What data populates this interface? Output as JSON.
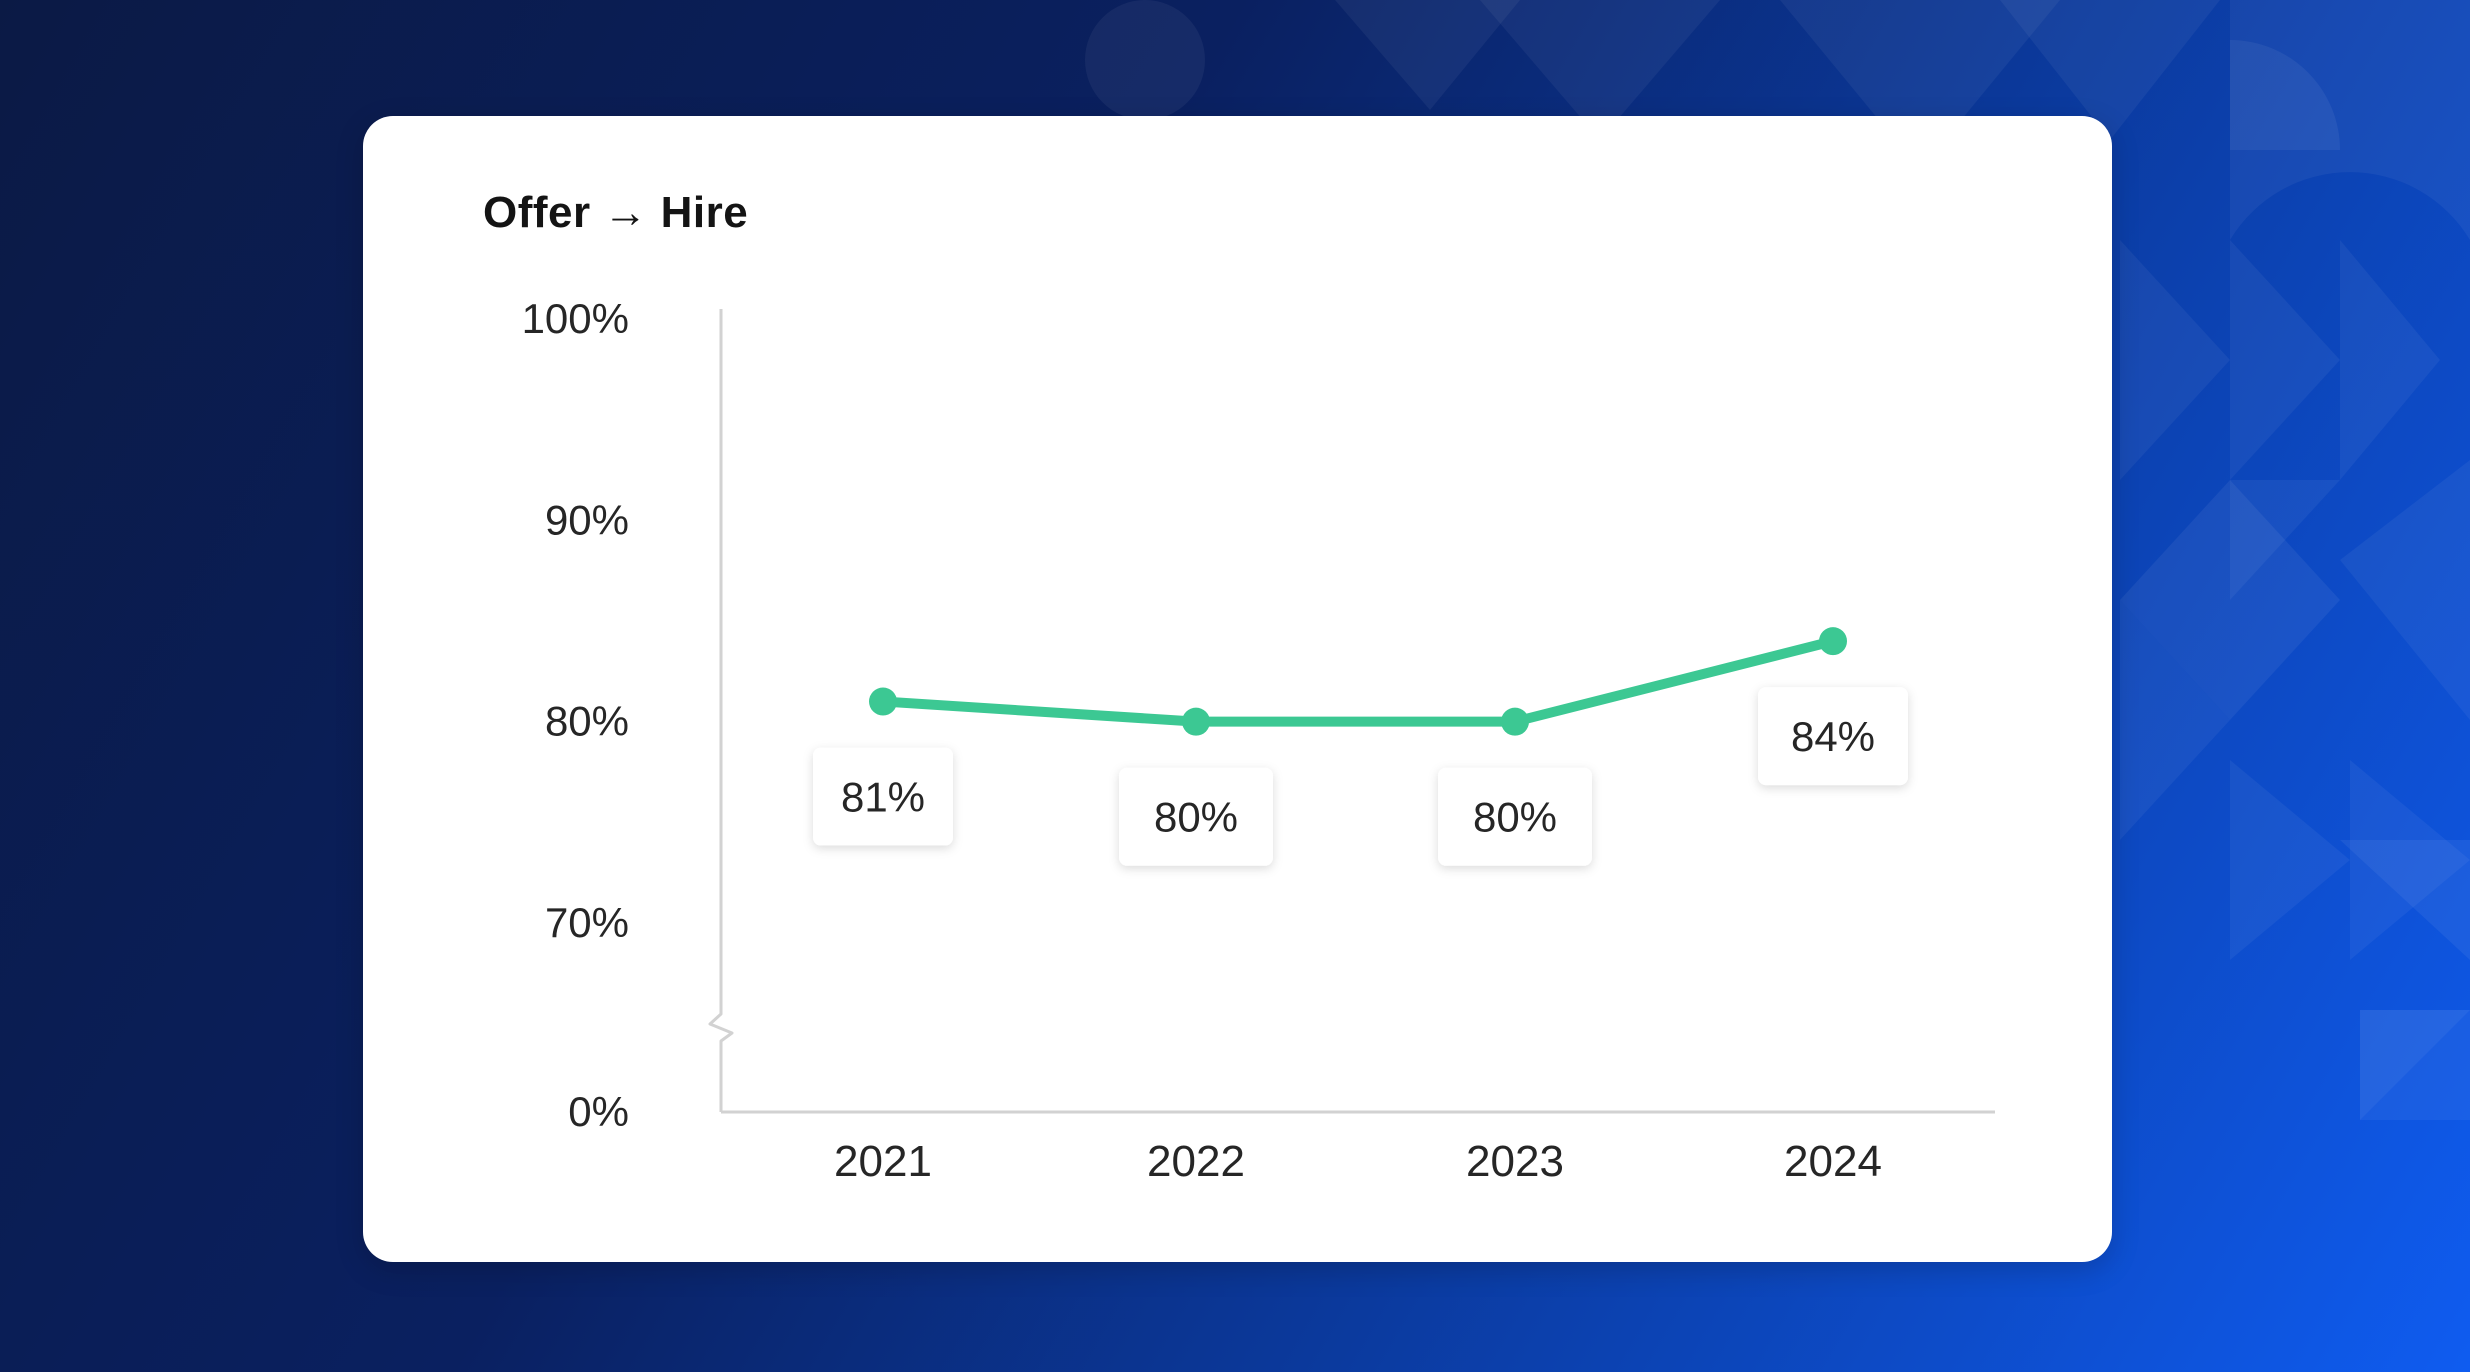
{
  "colors": {
    "line": "#3cc893",
    "axis": "#d2d2d2",
    "text": "#262626",
    "card": "#ffffff"
  },
  "chart_data": {
    "type": "line",
    "title": "Offer → Hire",
    "xlabel": "",
    "ylabel": "",
    "categories": [
      "2021",
      "2022",
      "2023",
      "2024"
    ],
    "series": [
      {
        "values": [
          81,
          80,
          80,
          84
        ],
        "labels": [
          "81%",
          "80%",
          "80%",
          "84%"
        ]
      }
    ],
    "yticks": [
      {
        "value": 100,
        "label": "100%"
      },
      {
        "value": 90,
        "label": "90%"
      },
      {
        "value": 80,
        "label": "80%"
      },
      {
        "value": 70,
        "label": "70%"
      },
      {
        "value": 0,
        "label": "0%"
      }
    ],
    "ylim": [
      0,
      100
    ],
    "axis_break": true,
    "grid": false,
    "legend": "none"
  }
}
